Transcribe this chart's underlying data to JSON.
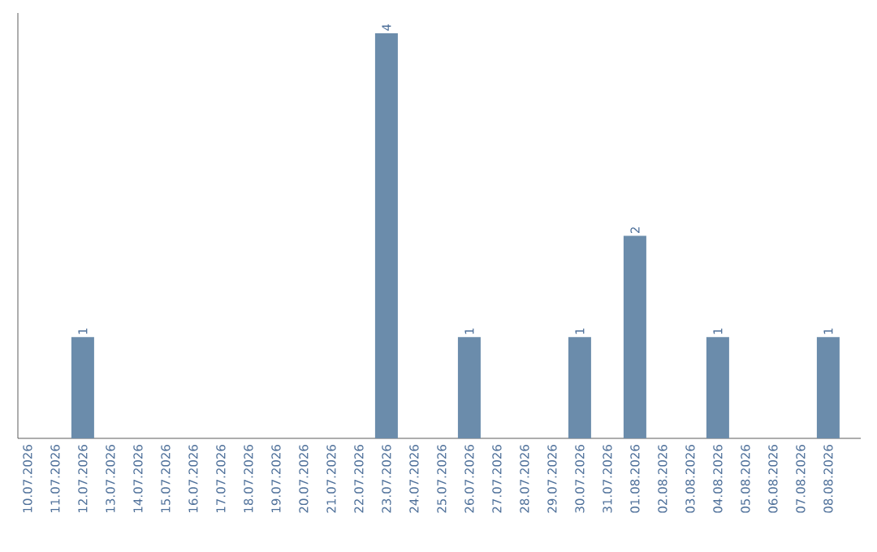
{
  "chart_data": {
    "type": "bar",
    "categories": [
      "10.07.2026",
      "11.07.2026",
      "12.07.2026",
      "13.07.2026",
      "14.07.2026",
      "15.07.2026",
      "16.07.2026",
      "17.07.2026",
      "18.07.2026",
      "19.07.2026",
      "20.07.2026",
      "21.07.2026",
      "22.07.2026",
      "23.07.2026",
      "24.07.2026",
      "25.07.2026",
      "26.07.2026",
      "27.07.2026",
      "28.07.2026",
      "29.07.2026",
      "30.07.2026",
      "31.07.2026",
      "01.08.2026",
      "02.08.2026",
      "03.08.2026",
      "04.08.2026",
      "05.08.2026",
      "06.08.2026",
      "07.08.2026",
      "08.08.2026"
    ],
    "values": [
      0,
      0,
      1,
      0,
      0,
      0,
      0,
      0,
      0,
      0,
      0,
      0,
      0,
      4,
      0,
      0,
      1,
      0,
      0,
      0,
      1,
      0,
      2,
      0,
      0,
      1,
      0,
      0,
      0,
      1
    ],
    "value_labels": [
      null,
      null,
      "1",
      null,
      null,
      null,
      null,
      null,
      null,
      null,
      null,
      null,
      null,
      "4",
      null,
      null,
      "1",
      null,
      null,
      null,
      "1",
      null,
      "2",
      null,
      null,
      "1",
      null,
      null,
      null,
      "1"
    ],
    "color": "#6b8cab",
    "grid": false,
    "tick_labels": "x"
  }
}
